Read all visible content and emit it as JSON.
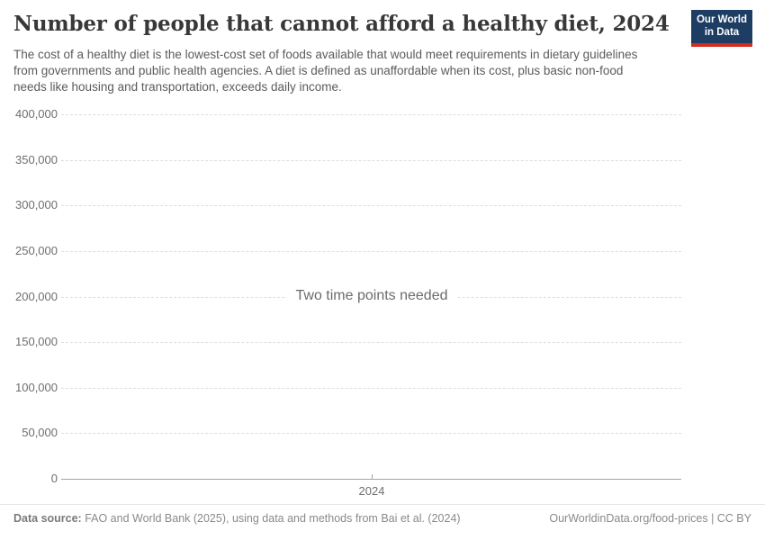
{
  "header": {
    "title": "Number of people that cannot afford a healthy diet, 2024",
    "subtitle": "The cost of a healthy diet is the lowest-cost set of foods available that would meet requirements in dietary guidelines from governments and public health agencies. A diet is defined as unaffordable when its cost, plus basic non-food needs like housing and transportation, exceeds daily income.",
    "logo": {
      "line1": "Our World",
      "line2": "in Data",
      "bg_color": "#1d3d63",
      "accent_color": "#d32b1e"
    }
  },
  "chart_data": {
    "type": "line",
    "title": "Number of people that cannot afford a healthy diet, 2024",
    "empty_state_message": "Two time points needed",
    "series": [],
    "x_ticks": [
      "2024"
    ],
    "y_ticks": [
      0,
      50000,
      100000,
      150000,
      200000,
      250000,
      300000,
      350000,
      400000
    ],
    "y_tick_labels": [
      "0",
      "50,000",
      "100,000",
      "150,000",
      "200,000",
      "250,000",
      "300,000",
      "350,000",
      "400,000"
    ],
    "ylim": [
      0,
      400000
    ],
    "xlabel": "",
    "ylabel": "",
    "grid": "dashed-horizontal",
    "legend": "none"
  },
  "footer": {
    "data_source_label": "Data source:",
    "data_source_text": " FAO and World Bank (2025), using data and methods from Bai et al. (2024)",
    "attribution": "OurWorldinData.org/food-prices | CC BY"
  }
}
